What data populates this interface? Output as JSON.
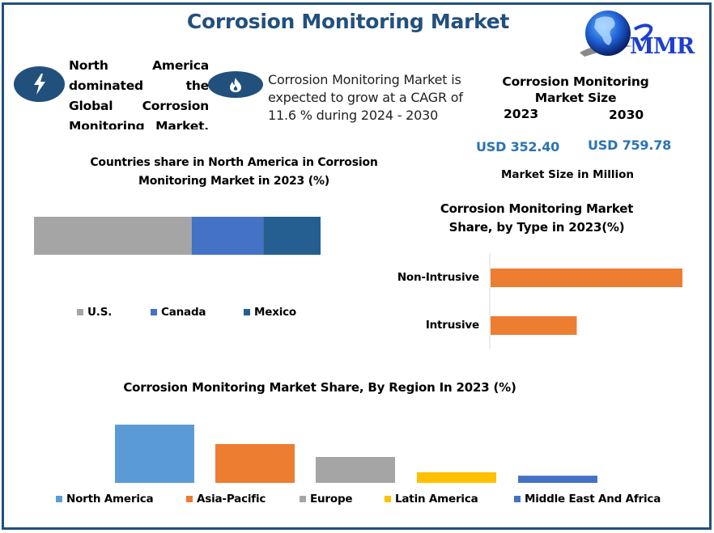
{
  "header": {
    "title": "Corrosion Monitoring Market",
    "logo_text": "MMR"
  },
  "icons": {
    "left": "lightning-bolt-icon",
    "right": "flame-icon"
  },
  "highlights": {
    "north_america": "North America dominated the Global Corrosion Monitoring Market.",
    "cagr": "Corrosion Monitoring Market is expected to grow at a CAGR of 11.6 % during 2024 - 2030"
  },
  "market_size": {
    "title_line1": "Corrosion Monitoring",
    "title_line2": "Market Size",
    "year_start": "2023",
    "year_end": "2030",
    "value_start": "USD 352.40",
    "value_end": "USD 759.78",
    "unit_note": "Market Size in Million"
  },
  "colors": {
    "frame": "#22507d",
    "accent_text": "#2a73b5",
    "us": "#a5a5a5",
    "canada": "#4472c4",
    "mexico": "#255e91",
    "type_bar": "#ed7d31",
    "north_america": "#5b9bd5",
    "asia_pacific": "#ed7d31",
    "europe": "#a5a5a5",
    "latin_america": "#ffc000",
    "mea": "#4472c4"
  },
  "chart_data": [
    {
      "type": "bar",
      "orientation": "horizontal-stacked",
      "title_line1": "Countries share in North America in Corrosion",
      "title_line2": "Monitoring Market in 2023 (%)",
      "categories": [
        "North America"
      ],
      "series": [
        {
          "name": "U.S.",
          "values": [
            55
          ]
        },
        {
          "name": "Canada",
          "values": [
            25
          ]
        },
        {
          "name": "Mexico",
          "values": [
            20
          ]
        }
      ],
      "xlim": [
        0,
        100
      ],
      "grid": false,
      "legend": "bottom"
    },
    {
      "type": "bar",
      "orientation": "horizontal",
      "title_line1": "Corrosion Monitoring Market",
      "title_line2": "Share, by Type in 2023(%)",
      "categories": [
        "Non-Intrusive",
        "Intrusive"
      ],
      "values": [
        69,
        31
      ],
      "xlim": [
        0,
        70
      ],
      "grid": false
    },
    {
      "type": "bar",
      "orientation": "vertical",
      "title": "Corrosion Monitoring Market Share, By Region In 2023 (%)",
      "categories": [
        "North America",
        "Asia-Pacific",
        "Europe",
        "Latin America",
        "Middle East And Africa"
      ],
      "values": [
        41.4,
        27.6,
        18.4,
        7.5,
        5.1
      ],
      "ylim": [
        0,
        42
      ],
      "grid": false,
      "legend": "bottom"
    }
  ]
}
